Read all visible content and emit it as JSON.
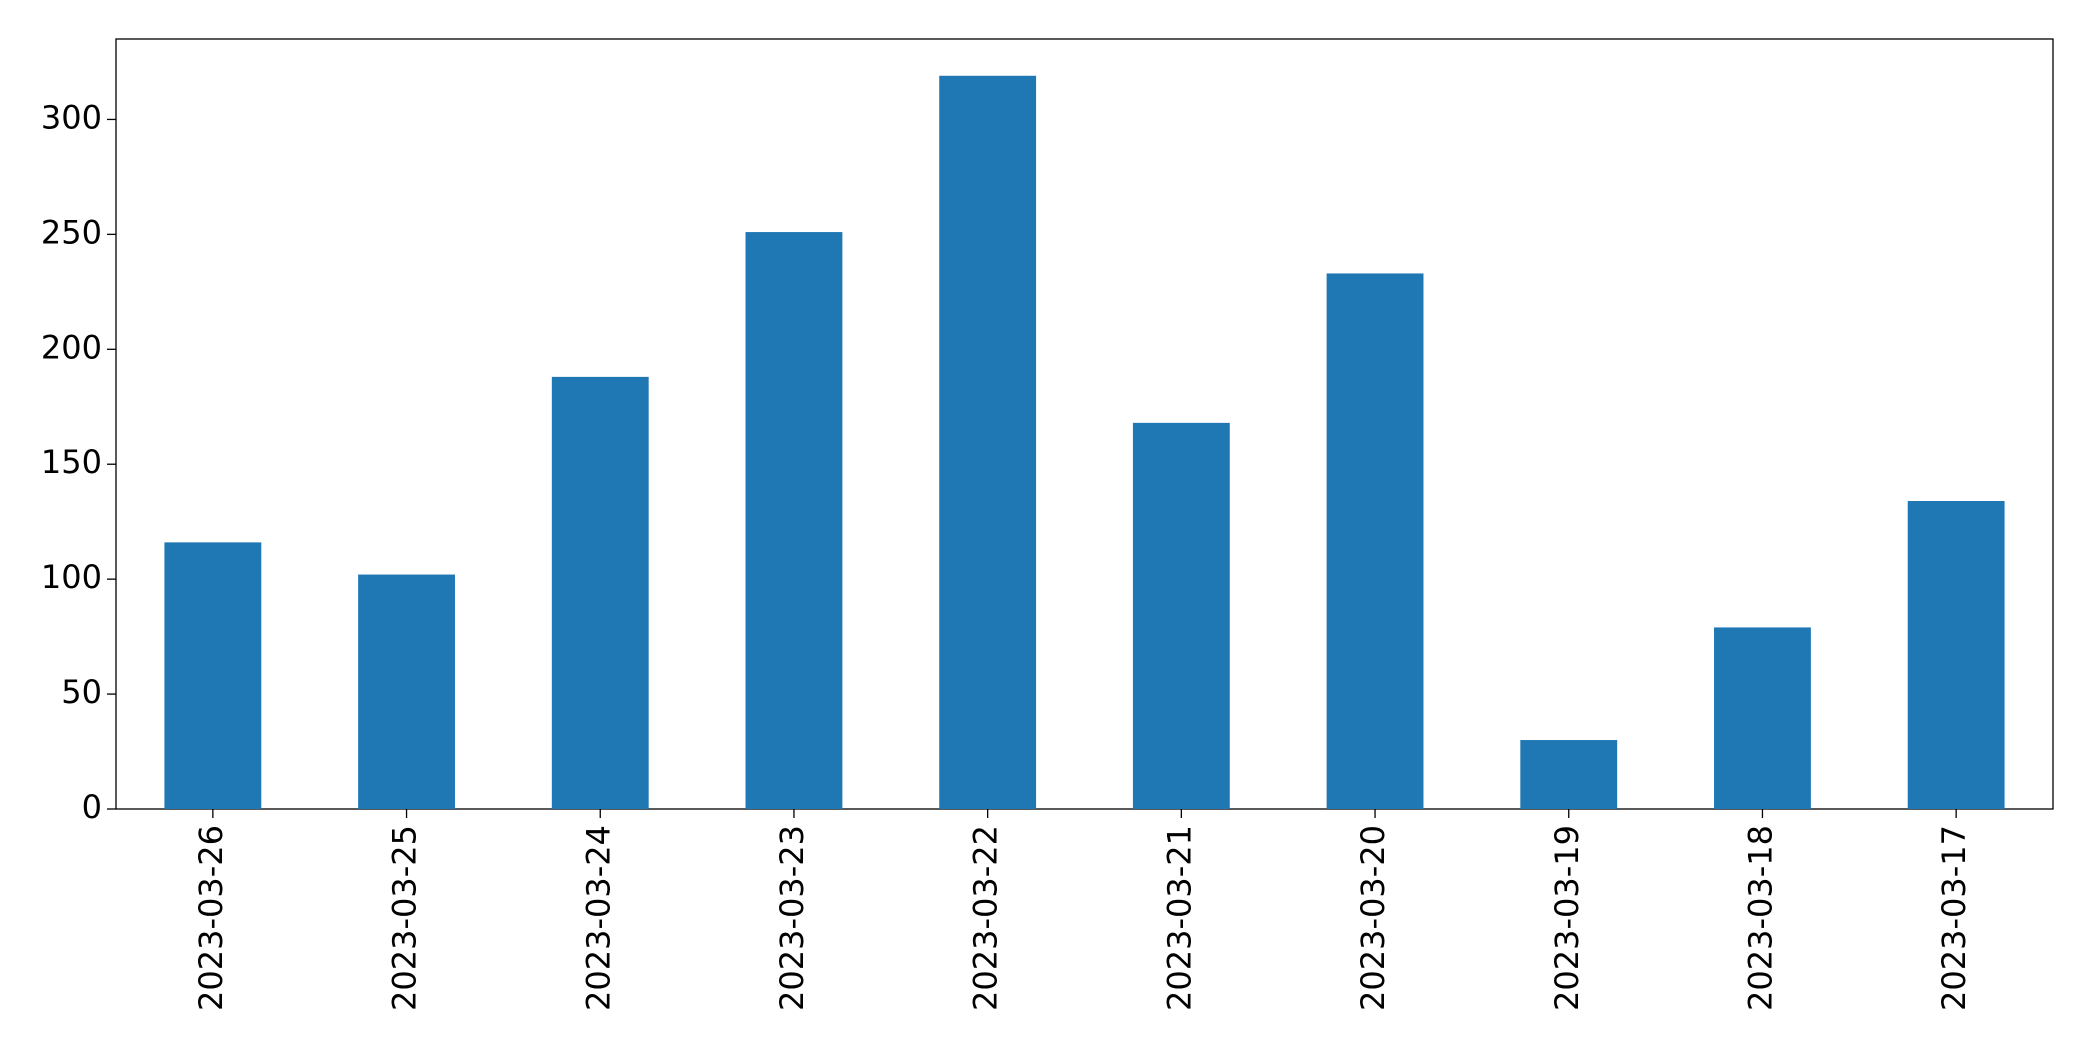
{
  "chart_data": {
    "type": "bar",
    "categories": [
      "2023-03-26",
      "2023-03-25",
      "2023-03-24",
      "2023-03-23",
      "2023-03-22",
      "2023-03-21",
      "2023-03-20",
      "2023-03-19",
      "2023-03-18",
      "2023-03-17"
    ],
    "values": [
      116,
      102,
      188,
      251,
      319,
      168,
      233,
      30,
      79,
      134
    ],
    "color": "#1f77b4",
    "ylim": [
      0,
      335
    ],
    "yticks": [
      0,
      50,
      100,
      150,
      200,
      250,
      300
    ],
    "grid": false
  }
}
